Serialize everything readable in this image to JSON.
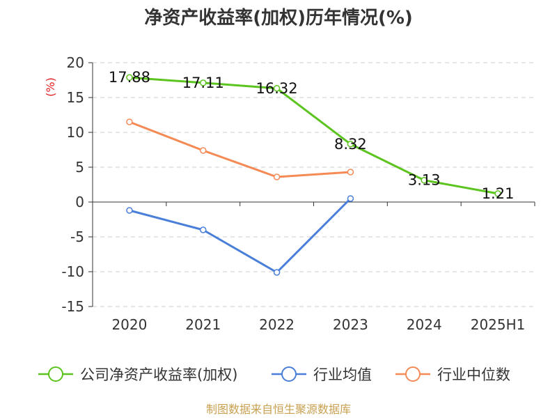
{
  "chart_data": {
    "type": "line",
    "title": "净资产收益率(加权)历年情况(%)",
    "ylabel": "(%)",
    "categories": [
      "2020",
      "2021",
      "2022",
      "2023",
      "2024",
      "2025H1"
    ],
    "ylim": [
      -15,
      20
    ],
    "yticks": [
      20,
      15,
      10,
      5,
      0,
      -5,
      -10,
      -15
    ],
    "grid": true,
    "legend_position": "bottom",
    "series": [
      {
        "name": "公司净资产收益率(加权)",
        "color": "#5cc41e",
        "values": [
          17.88,
          17.11,
          16.32,
          8.32,
          3.13,
          1.21
        ],
        "labels": [
          "17.88",
          "17.11",
          "16.32",
          "8.32",
          "3.13",
          "1.21"
        ]
      },
      {
        "name": "行业均值",
        "color": "#4a7fd9",
        "values": [
          -1.2,
          -4.0,
          -10.1,
          0.5,
          null,
          null
        ]
      },
      {
        "name": "行业中位数",
        "color": "#f58a55",
        "values": [
          11.5,
          7.4,
          3.6,
          4.3,
          null,
          null
        ]
      }
    ]
  },
  "source": "制图数据来自恒生聚源数据库"
}
